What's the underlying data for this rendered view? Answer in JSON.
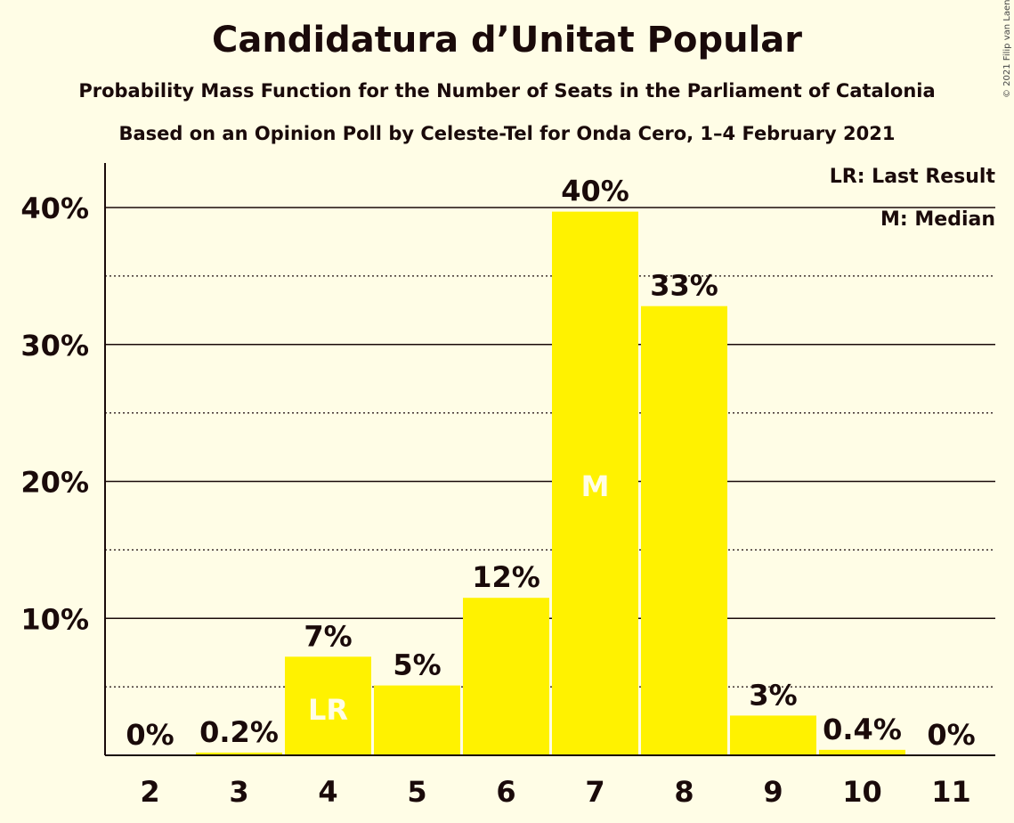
{
  "title": "Candidatura d’Unitat Popular",
  "subtitle": "Probability Mass Function for the Number of Seats in the Parliament of Catalonia",
  "subtitle2": "Based on an Opinion Poll by Celeste-Tel for Onda Cero, 1–4 February 2021",
  "copyright": "© 2021 Filip van Laenen",
  "legend": {
    "last_result": "LR: Last Result",
    "median": "M: Median"
  },
  "colors": {
    "bar": "#FFF200",
    "background": "#FFFDE6",
    "text": "#1a0a0a",
    "marker_text": "#FFFDE6"
  },
  "chart_data": {
    "type": "bar",
    "categories": [
      "2",
      "3",
      "4",
      "5",
      "6",
      "7",
      "8",
      "9",
      "10",
      "11"
    ],
    "values": [
      0,
      0.2,
      7.2,
      5.1,
      11.5,
      39.7,
      32.8,
      2.9,
      0.4,
      0
    ],
    "data_labels": [
      "0%",
      "0.2%",
      "7%",
      "5%",
      "12%",
      "40%",
      "33%",
      "3%",
      "0.4%",
      "0%"
    ],
    "markers": {
      "4": "LR",
      "7": "M"
    },
    "y_ticks": [
      10,
      20,
      30,
      40
    ],
    "y_tick_labels": [
      "10%",
      "20%",
      "30%",
      "40%"
    ],
    "y_minor_ticks": [
      5,
      15,
      25,
      35
    ],
    "ylim": [
      0,
      43
    ],
    "grid": true,
    "legend_position": "top-right"
  }
}
